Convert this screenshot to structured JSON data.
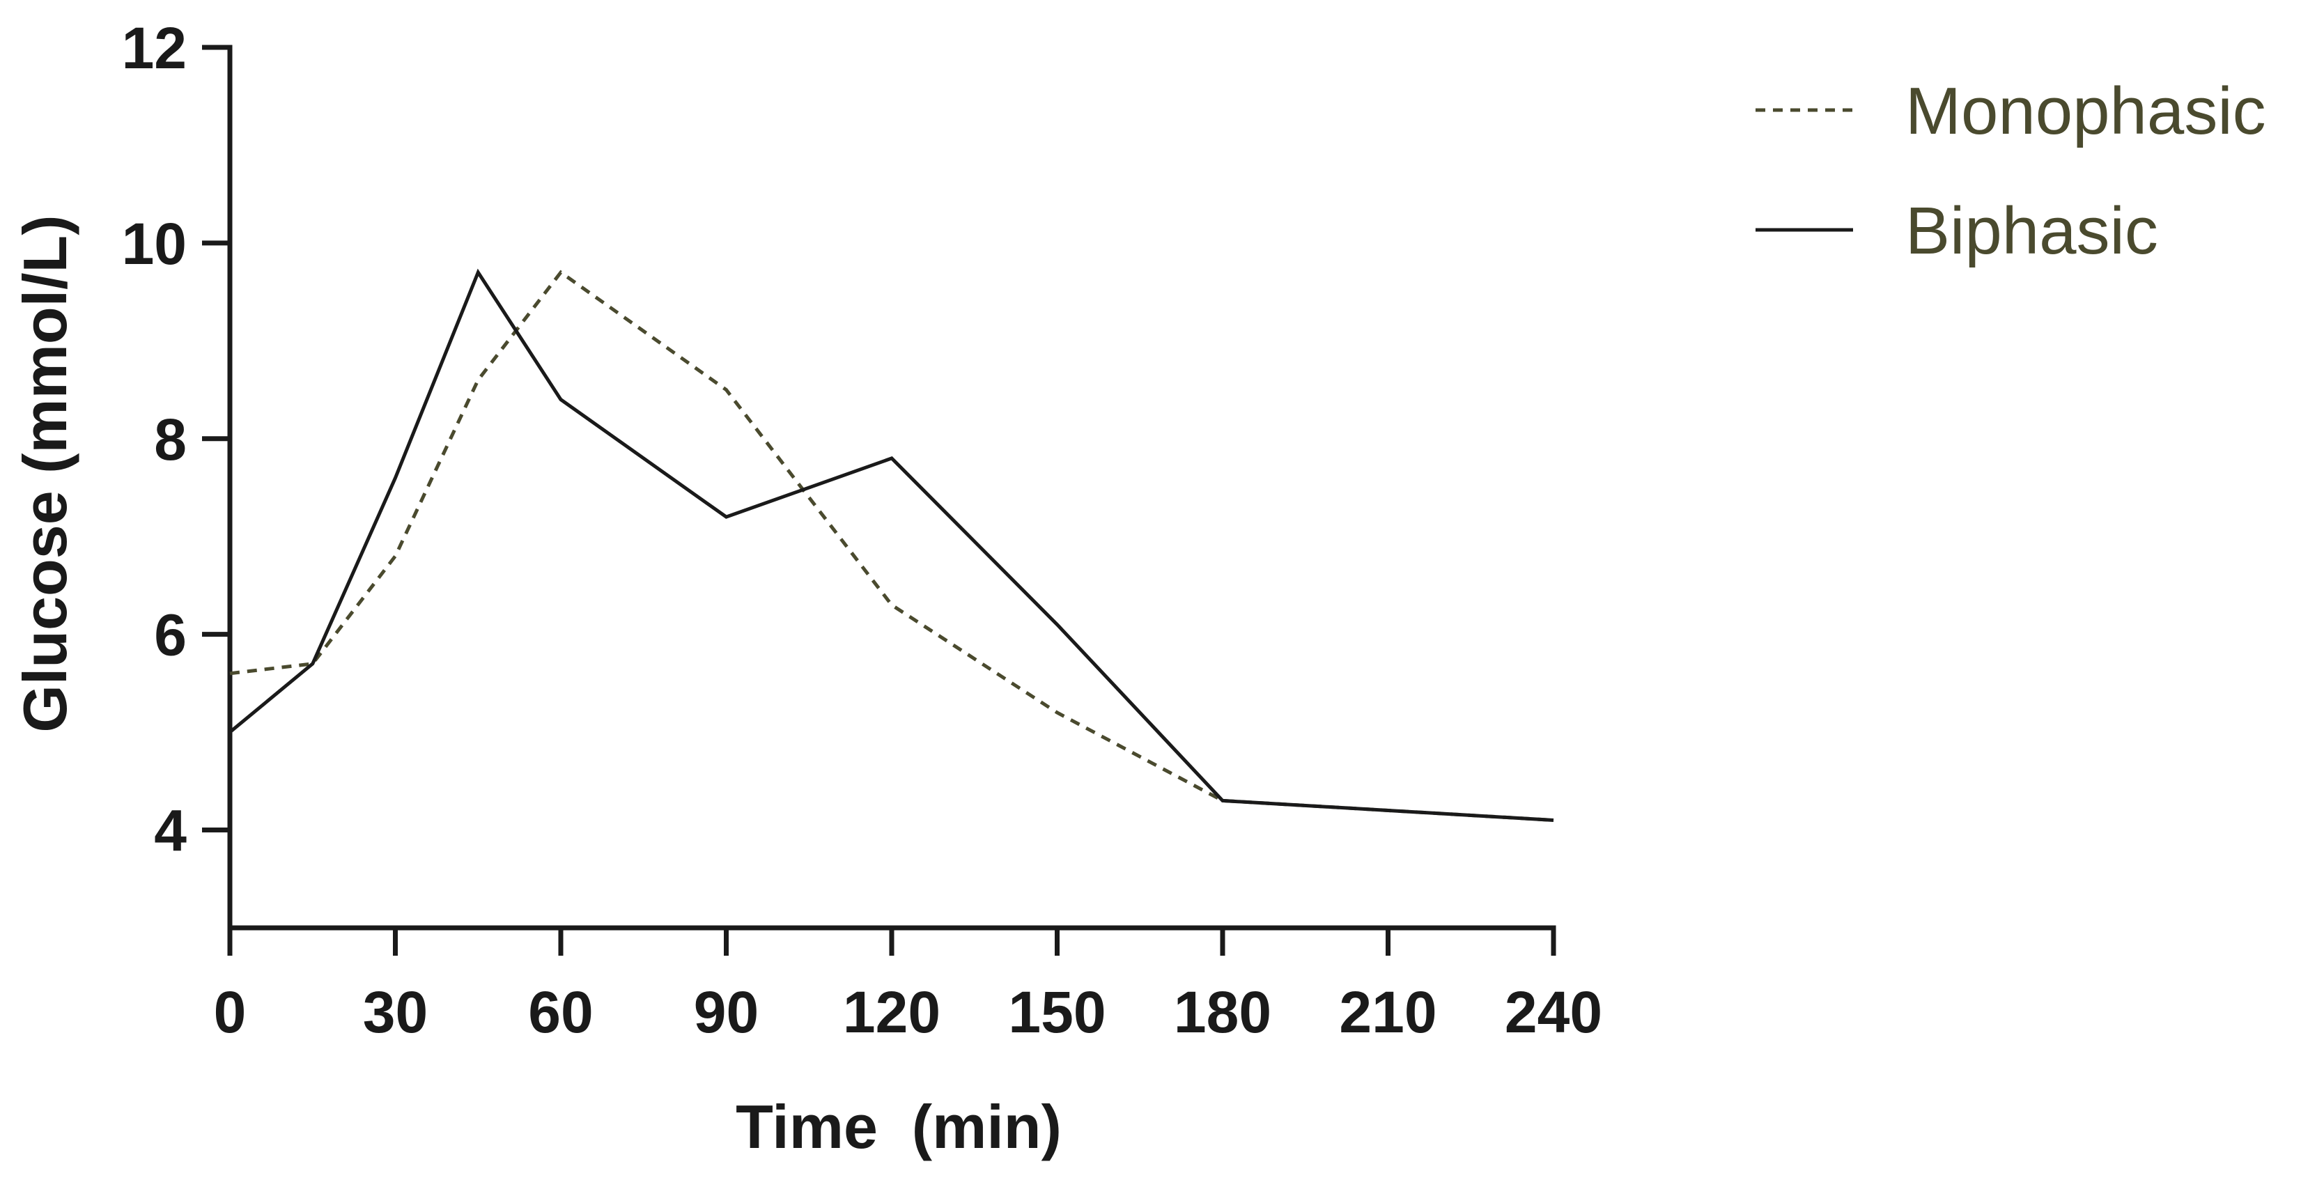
{
  "chart_data": {
    "type": "line",
    "title": "",
    "xlabel": "Time  (min)",
    "ylabel": "Glucose (mmol/L)",
    "xlim": [
      0,
      240
    ],
    "ylim": [
      3,
      12
    ],
    "xticks": [
      0,
      30,
      60,
      90,
      120,
      150,
      180,
      210,
      240
    ],
    "yticks": [
      4,
      6,
      8,
      10,
      12
    ],
    "grid": false,
    "legend_position": "top-right",
    "series": [
      {
        "name": "Monophasic",
        "style": "dashed",
        "color": "#4a4a2e",
        "x": [
          0,
          15,
          30,
          45,
          60,
          90,
          120,
          150,
          180,
          240
        ],
        "values": [
          5.6,
          5.7,
          6.8,
          8.6,
          9.7,
          8.5,
          6.3,
          5.2,
          4.3,
          4.1
        ]
      },
      {
        "name": "Biphasic",
        "style": "solid",
        "color": "#1a1a1a",
        "x": [
          0,
          15,
          30,
          45,
          60,
          90,
          120,
          150,
          180,
          240
        ],
        "values": [
          5.0,
          5.7,
          7.6,
          9.7,
          8.4,
          7.2,
          7.8,
          6.1,
          4.3,
          4.1
        ]
      }
    ]
  },
  "legend": {
    "label_color": "#4a4a2e"
  }
}
